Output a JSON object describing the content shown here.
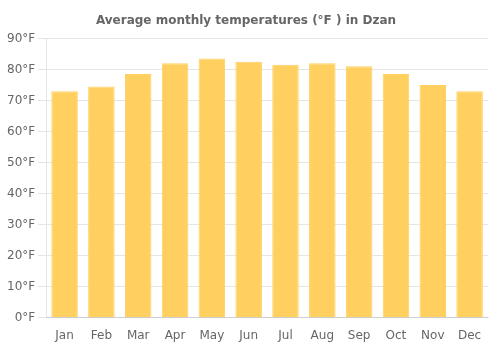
{
  "chart_data": {
    "type": "bar",
    "title": "Average monthly temperatures (°F ) in Dzan",
    "categories": [
      "Jan",
      "Feb",
      "Mar",
      "Apr",
      "May",
      "Jun",
      "Jul",
      "Aug",
      "Sep",
      "Oct",
      "Nov",
      "Dec"
    ],
    "values": [
      73,
      74.5,
      78.5,
      82,
      83.5,
      82.5,
      81.5,
      82,
      81,
      78.5,
      75,
      73
    ],
    "color": "#FFD060",
    "ylim": [
      0,
      90
    ],
    "yticks": [
      {
        "value": 0,
        "label": "0°F"
      },
      {
        "value": 10,
        "label": "10°F"
      },
      {
        "value": 20,
        "label": "20°F"
      },
      {
        "value": 30,
        "label": "30°F"
      },
      {
        "value": 40,
        "label": "40°F"
      },
      {
        "value": 50,
        "label": "50°F"
      },
      {
        "value": 60,
        "label": "60°F"
      },
      {
        "value": 70,
        "label": "70°F"
      },
      {
        "value": 80,
        "label": "80°F"
      },
      {
        "value": 90,
        "label": "90°F"
      }
    ],
    "grid": true
  }
}
